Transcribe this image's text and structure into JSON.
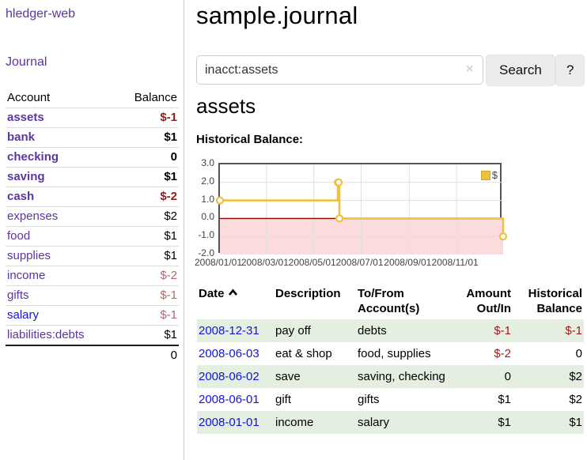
{
  "sidebar": {
    "brand": "hledger-web",
    "nav_journal": "Journal",
    "header": {
      "account": "Account",
      "balance": "Balance"
    },
    "accounts": [
      {
        "name": "assets",
        "depth": 1,
        "bold": true,
        "link_color": "purple",
        "balance": "$-1",
        "balance_style": "neg-strong"
      },
      {
        "name": "bank",
        "depth": 2,
        "bold": true,
        "link_color": "purple",
        "balance": "$1",
        "balance_style": ""
      },
      {
        "name": "checking",
        "depth": 3,
        "bold": true,
        "link_color": "purple",
        "balance": "0",
        "balance_style": ""
      },
      {
        "name": "saving",
        "depth": 3,
        "bold": true,
        "link_color": "purple",
        "balance": "$1",
        "balance_style": ""
      },
      {
        "name": "cash",
        "depth": 2,
        "bold": true,
        "link_color": "purple",
        "balance": "$-2",
        "balance_style": "neg-strong"
      },
      {
        "name": "expenses",
        "depth": 1,
        "bold": false,
        "link_color": "purple",
        "balance": "$2",
        "balance_style": ""
      },
      {
        "name": "food",
        "depth": 2,
        "bold": false,
        "link_color": "purple",
        "balance": "$1",
        "balance_style": ""
      },
      {
        "name": "supplies",
        "depth": 2,
        "bold": false,
        "link_color": "purple",
        "balance": "$1",
        "balance_style": ""
      },
      {
        "name": "income",
        "depth": 1,
        "bold": false,
        "link_color": "purple",
        "balance": "$-2",
        "balance_style": "neg-soft"
      },
      {
        "name": "gifts",
        "depth": 2,
        "bold": false,
        "link_color": "purple",
        "balance": "$-1",
        "balance_style": "neg-soft"
      },
      {
        "name": "salary",
        "depth": 2,
        "bold": false,
        "link_color": "blue",
        "balance": "$-1",
        "balance_style": "neg-soft"
      },
      {
        "name": "liabilities:debts",
        "depth": 1,
        "bold": false,
        "link_color": "purple",
        "balance": "$1",
        "balance_style": ""
      }
    ],
    "total": "0"
  },
  "header": {
    "title": "sample.journal"
  },
  "search": {
    "query": "inacct:assets",
    "clear_icon": "×",
    "search_label": "Search",
    "help_label": "?"
  },
  "account_page": {
    "title": "assets",
    "section_label": "Historical Balance:"
  },
  "chart_data": {
    "type": "line",
    "title": "Historical Balance",
    "legend_position": "top-right",
    "grid": true,
    "xrange": [
      "2008-01-01",
      "2008-12-31"
    ],
    "ylim": [
      -2,
      3
    ],
    "yticks": [
      "3.0",
      "2.0",
      "1.0",
      "0.0",
      "-1.0",
      "-2.0"
    ],
    "ytick_values": [
      3,
      2,
      1,
      0,
      -1,
      -2
    ],
    "xticks": [
      "2008/01/01",
      "2008/03/01",
      "2008/05/01",
      "2008/07/01",
      "2008/09/01",
      "2008/11/01"
    ],
    "series": [
      {
        "name": "$",
        "color": "#edc240",
        "steps": true,
        "points": [
          [
            "2008-01-01",
            1
          ],
          [
            "2008-06-01",
            2
          ],
          [
            "2008-06-02",
            2
          ],
          [
            "2008-06-03",
            0
          ],
          [
            "2008-12-31",
            -1
          ]
        ]
      }
    ],
    "negative_region_fill": "#fbdbdb",
    "zero_line_color": "#8b0000",
    "grid_color": "#e0e0e0",
    "border_color": "#545454"
  },
  "register": {
    "headers": {
      "date": "Date",
      "description": "Description",
      "accounts": "To/From\nAccount(s)",
      "amount": "Amount\nOut/In",
      "balance": "Historical\nBalance"
    },
    "rows": [
      {
        "date": "2008-12-31",
        "description": "pay off",
        "accounts": "debts",
        "amount": "$-1",
        "amount_negative": true,
        "balance": "$-1",
        "balance_negative": true
      },
      {
        "date": "2008-06-03",
        "description": "eat & shop",
        "accounts": "food, supplies",
        "amount": "$-2",
        "amount_negative": true,
        "balance": "0",
        "balance_negative": false
      },
      {
        "date": "2008-06-02",
        "description": "save",
        "accounts": "saving, checking",
        "amount": "0",
        "amount_negative": false,
        "balance": "$2",
        "balance_negative": false
      },
      {
        "date": "2008-06-01",
        "description": "gift",
        "accounts": "gifts",
        "amount": "$1",
        "amount_negative": false,
        "balance": "$2",
        "balance_negative": false
      },
      {
        "date": "2008-01-01",
        "description": "income",
        "accounts": "salary",
        "amount": "$1",
        "amount_negative": false,
        "balance": "$1",
        "balance_negative": false
      }
    ]
  }
}
